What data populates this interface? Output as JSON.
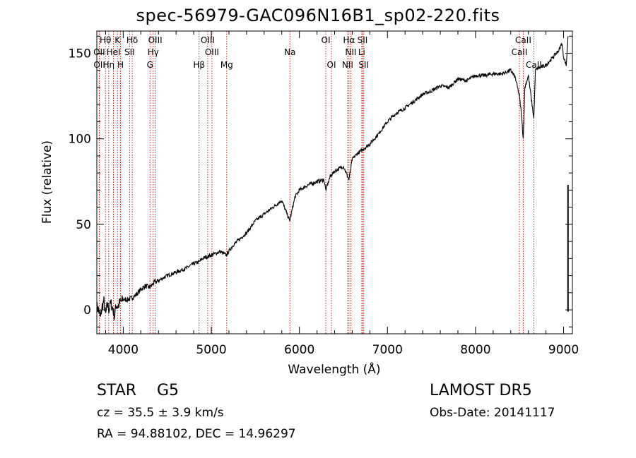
{
  "chart_data": {
    "type": "line",
    "title": "spec-56979-GAC096N16B1_sp02-220.fits",
    "xlabel": "Wavelength (Å)",
    "ylabel": "Flux (relative)",
    "xlim": [
      3700,
      9100
    ],
    "ylim": [
      -14,
      163
    ],
    "xticks": [
      4000,
      5000,
      6000,
      7000,
      8000,
      9000
    ],
    "yticks": [
      0,
      50,
      100,
      150
    ],
    "grid": false,
    "series": [
      {
        "x": [
          3700,
          3720,
          3740,
          3760,
          3780,
          3800,
          3820,
          3840,
          3860,
          3880,
          3900,
          3920,
          3940,
          3960,
          3980,
          4000,
          4050,
          4100,
          4150,
          4200,
          4250,
          4300,
          4350,
          4400,
          4500,
          4600,
          4700,
          4800,
          4860,
          4900,
          5000,
          5100,
          5170,
          5250,
          5400,
          5500,
          5600,
          5700,
          5800,
          5890,
          5950,
          6000,
          6100,
          6200,
          6280,
          6300,
          6350,
          6400,
          6500,
          6563,
          6600,
          6650,
          6700,
          6800,
          6900,
          7000,
          7100,
          7200,
          7300,
          7400,
          7500,
          7600,
          7700,
          7800,
          7900,
          8000,
          8100,
          8200,
          8300,
          8400,
          8450,
          8498,
          8520,
          8542,
          8560,
          8600,
          8662,
          8680,
          8700,
          8800,
          8900,
          8950,
          8980,
          9000,
          9030,
          9050
        ],
        "y": [
          2,
          0,
          -5,
          2,
          5,
          -3,
          3,
          0,
          4,
          1,
          -4,
          3,
          2,
          4,
          5,
          6,
          6,
          7,
          9,
          12,
          14,
          13,
          16,
          17,
          20,
          22,
          24,
          27,
          28,
          30,
          32,
          34,
          32,
          38,
          45,
          52,
          56,
          60,
          64,
          52,
          66,
          70,
          73,
          75,
          76,
          70,
          78,
          81,
          84,
          76,
          88,
          91,
          93,
          97,
          103,
          110,
          115,
          118,
          122,
          126,
          128,
          131,
          130,
          135,
          134,
          137,
          137,
          138,
          138,
          140,
          136,
          125,
          115,
          100,
          130,
          137,
          112,
          140,
          141,
          143,
          149,
          152,
          156,
          148,
          143,
          160
        ]
      }
    ]
  },
  "lines": [
    {
      "label": "Hθ",
      "wl": 3798,
      "row": 1
    },
    {
      "label": "K",
      "wl": 3934,
      "row": 1
    },
    {
      "label": "Hδ",
      "wl": 4102,
      "row": 1
    },
    {
      "label": "OIII",
      "wl": 4363,
      "row": 1
    },
    {
      "label": "OIII",
      "wl": 4959,
      "row": 1
    },
    {
      "label": "OI",
      "wl": 6300,
      "row": 1
    },
    {
      "label": "Hα",
      "wl": 6563,
      "row": 1
    },
    {
      "label": "SII",
      "wl": 6717,
      "row": 1
    },
    {
      "label": "CaII",
      "wl": 8542,
      "row": 1
    },
    {
      "label": "OII",
      "wl": 3727,
      "row": 2
    },
    {
      "label": "HeI",
      "wl": 3889,
      "row": 2
    },
    {
      "label": "SII",
      "wl": 4072,
      "row": 2
    },
    {
      "label": "Hγ",
      "wl": 4340,
      "row": 2
    },
    {
      "label": "OIII",
      "wl": 5007,
      "row": 2
    },
    {
      "label": "Na",
      "wl": 5893,
      "row": 2
    },
    {
      "label": "NII",
      "wl": 6584,
      "row": 2
    },
    {
      "label": "Li",
      "wl": 6708,
      "row": 2
    },
    {
      "label": "CaII",
      "wl": 8498,
      "row": 2
    },
    {
      "label": "OII",
      "wl": 3729,
      "row": 3
    },
    {
      "label": "Hη",
      "wl": 3835,
      "row": 3
    },
    {
      "label": "H",
      "wl": 3969,
      "row": 3
    },
    {
      "label": "G",
      "wl": 4304,
      "row": 3
    },
    {
      "label": "Hβ",
      "wl": 4861,
      "row": 3
    },
    {
      "label": "Mg",
      "wl": 5175,
      "row": 3
    },
    {
      "label": "OI",
      "wl": 6364,
      "row": 3
    },
    {
      "label": "NII",
      "wl": 6548,
      "row": 3
    },
    {
      "label": "SII",
      "wl": 6731,
      "row": 3
    },
    {
      "label": "CaII",
      "wl": 8662,
      "row": 3
    }
  ],
  "info": {
    "class": "STAR",
    "subclass": "G5",
    "survey": "LAMOST DR5",
    "cz": "cz = 35.5 ± 3.9 km/s",
    "obsdate": "Obs-Date: 20141117",
    "radec": "RA =  94.88102, DEC =  14.96297"
  },
  "colors": {
    "line_marker": "#cc0000",
    "spectrum": "#000000"
  }
}
